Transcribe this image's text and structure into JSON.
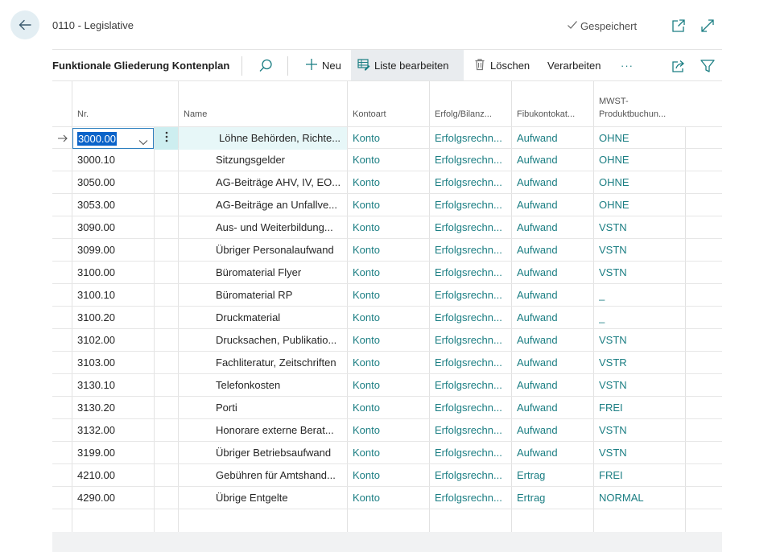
{
  "header": {
    "breadcrumb": "0110 - Legislative",
    "saved_label": "Gespeichert"
  },
  "toolbar": {
    "title": "Funktionale Gliederung Kontenplan",
    "new_label": "Neu",
    "edit_list_label": "Liste bearbeiten",
    "delete_label": "Löschen",
    "process_label": "Verarbeiten",
    "more_label": "···"
  },
  "columns": {
    "no": "Nr.",
    "name": "Name",
    "kontoart": "Kontoart",
    "erfolg": "Erfolg/Bilanz...",
    "fibu": "Fibukontokat...",
    "mwst_line1": "MWST-",
    "mwst_line2": "Produktbuchun..."
  },
  "rows": [
    {
      "no": "3000.00",
      "name": "Löhne Behörden, Richte...",
      "kontoart": "Konto",
      "erfolg": "Erfolgsrechn...",
      "fibu": "Aufwand",
      "mwst": "OHNE"
    },
    {
      "no": "3000.10",
      "name": "Sitzungsgelder",
      "kontoart": "Konto",
      "erfolg": "Erfolgsrechn...",
      "fibu": "Aufwand",
      "mwst": "OHNE"
    },
    {
      "no": "3050.00",
      "name": "AG-Beiträge AHV, IV, EO...",
      "kontoart": "Konto",
      "erfolg": "Erfolgsrechn...",
      "fibu": "Aufwand",
      "mwst": "OHNE"
    },
    {
      "no": "3053.00",
      "name": "AG-Beiträge an Unfallve...",
      "kontoart": "Konto",
      "erfolg": "Erfolgsrechn...",
      "fibu": "Aufwand",
      "mwst": "OHNE"
    },
    {
      "no": "3090.00",
      "name": "Aus- und Weiterbildung...",
      "kontoart": "Konto",
      "erfolg": "Erfolgsrechn...",
      "fibu": "Aufwand",
      "mwst": "VSTN"
    },
    {
      "no": "3099.00",
      "name": "Übriger Personalaufwand",
      "kontoart": "Konto",
      "erfolg": "Erfolgsrechn...",
      "fibu": "Aufwand",
      "mwst": "VSTN"
    },
    {
      "no": "3100.00",
      "name": "Büromaterial Flyer",
      "kontoart": "Konto",
      "erfolg": "Erfolgsrechn...",
      "fibu": "Aufwand",
      "mwst": "VSTN"
    },
    {
      "no": "3100.10",
      "name": "Büromaterial RP",
      "kontoart": "Konto",
      "erfolg": "Erfolgsrechn...",
      "fibu": "Aufwand",
      "mwst": "_"
    },
    {
      "no": "3100.20",
      "name": "Druckmaterial",
      "kontoart": "Konto",
      "erfolg": "Erfolgsrechn...",
      "fibu": "Aufwand",
      "mwst": "_"
    },
    {
      "no": "3102.00",
      "name": "Drucksachen, Publikatio...",
      "kontoart": "Konto",
      "erfolg": "Erfolgsrechn...",
      "fibu": "Aufwand",
      "mwst": "VSTN"
    },
    {
      "no": "3103.00",
      "name": "Fachliteratur, Zeitschriften",
      "kontoart": "Konto",
      "erfolg": "Erfolgsrechn...",
      "fibu": "Aufwand",
      "mwst": "VSTR"
    },
    {
      "no": "3130.10",
      "name": "Telefonkosten",
      "kontoart": "Konto",
      "erfolg": "Erfolgsrechn...",
      "fibu": "Aufwand",
      "mwst": "VSTN"
    },
    {
      "no": "3130.20",
      "name": "Porti",
      "kontoart": "Konto",
      "erfolg": "Erfolgsrechn...",
      "fibu": "Aufwand",
      "mwst": "FREI"
    },
    {
      "no": "3132.00",
      "name": "Honorare externe Berat...",
      "kontoart": "Konto",
      "erfolg": "Erfolgsrechn...",
      "fibu": "Aufwand",
      "mwst": "VSTN"
    },
    {
      "no": "3199.00",
      "name": "Übriger Betriebsaufwand",
      "kontoart": "Konto",
      "erfolg": "Erfolgsrechn...",
      "fibu": "Aufwand",
      "mwst": "VSTN"
    },
    {
      "no": "4210.00",
      "name": "Gebühren für Amtshand...",
      "kontoart": "Konto",
      "erfolg": "Erfolgsrechn...",
      "fibu": "Ertrag",
      "mwst": "FREI"
    },
    {
      "no": "4290.00",
      "name": "Übrige Entgelte",
      "kontoart": "Konto",
      "erfolg": "Erfolgsrechn...",
      "fibu": "Ertrag",
      "mwst": "NORMAL"
    }
  ],
  "icons": {
    "back": "arrow-left-icon",
    "saved": "checkmark-icon",
    "open_new_window": "open-new-window-icon",
    "expand": "expand-icon",
    "search": "search-icon",
    "new": "plus-icon",
    "edit_list": "edit-list-icon",
    "delete": "trash-icon",
    "share": "share-icon",
    "filter": "filter-icon",
    "current_row": "arrow-right-icon",
    "dropdown": "chevron-down-icon",
    "row_actions": "vertical-dots-icon"
  },
  "colors": {
    "link_teal": "#1b7e83",
    "selection_blue": "#0a63c9",
    "row_action_bg": "#cdeef0",
    "back_button_bg": "#e3eef3"
  }
}
